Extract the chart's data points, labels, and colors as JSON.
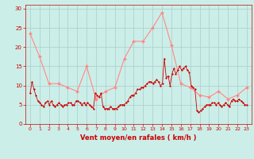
{
  "background_color": "#cceee8",
  "grid_color": "#aacccc",
  "line_color_avg": "#ff8888",
  "line_color_gust": "#cc0000",
  "marker_color_avg": "#ff8888",
  "marker_color_gust": "#cc0000",
  "xlabel": "Vent moyen/en rafales ( km/h )",
  "xlabel_color": "#cc0000",
  "tick_color": "#cc0000",
  "ylim": [
    0,
    31
  ],
  "xlim": [
    -0.5,
    23.5
  ],
  "yticks": [
    0,
    5,
    10,
    15,
    20,
    25,
    30
  ],
  "xticks": [
    0,
    1,
    2,
    3,
    4,
    5,
    6,
    7,
    8,
    9,
    10,
    11,
    12,
    13,
    14,
    15,
    16,
    17,
    18,
    19,
    20,
    21,
    22,
    23
  ],
  "avg_y": [
    23.5,
    17.5,
    10.5,
    10.5,
    9.5,
    8.5,
    15.0,
    6.5,
    8.5,
    9.5,
    17.0,
    21.5,
    21.5,
    25.0,
    29.0,
    20.5,
    10.5,
    9.5,
    7.5,
    7.0,
    8.5,
    6.5,
    7.5,
    9.5
  ],
  "gust_y": [
    8.0,
    11.0,
    9.0,
    7.5,
    6.0,
    5.5,
    5.0,
    4.5,
    5.5,
    6.0,
    5.0,
    6.0,
    5.0,
    4.5,
    5.0,
    5.5,
    5.0,
    4.5,
    5.0,
    5.0,
    5.5,
    5.5,
    5.0,
    5.0,
    6.0,
    6.0,
    5.5,
    5.0,
    5.5,
    5.0,
    5.5,
    5.0,
    4.5,
    4.0,
    8.0,
    7.5,
    7.0,
    8.0,
    4.5,
    4.0,
    4.0,
    4.0,
    4.5,
    4.0,
    4.0,
    4.0,
    4.5,
    5.0,
    5.0,
    5.0,
    5.5,
    6.0,
    7.0,
    7.5,
    7.5,
    8.0,
    9.0,
    9.0,
    9.5,
    9.5,
    10.0,
    10.5,
    11.0,
    11.0,
    10.5,
    11.0,
    11.5,
    11.0,
    10.0,
    10.5,
    17.0,
    12.0,
    12.5,
    10.0,
    13.0,
    14.5,
    13.0,
    14.0,
    15.0,
    14.0,
    14.5,
    15.0,
    14.0,
    13.5,
    10.0,
    9.5,
    9.0,
    3.5,
    3.0,
    3.5,
    4.0,
    4.5,
    5.0,
    5.0,
    5.0,
    5.5,
    5.5,
    5.0,
    5.5,
    5.0,
    4.5,
    5.0,
    5.5,
    5.0,
    4.5,
    6.0,
    6.5,
    6.0,
    6.0,
    6.5,
    6.0,
    5.5,
    5.0,
    5.0
  ],
  "num_gust_points": 113
}
